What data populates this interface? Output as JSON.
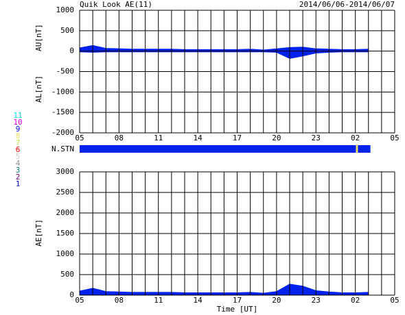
{
  "header": {
    "title": "Quik Look AE(11)",
    "date_range": "2014/06/06-2014/06/07"
  },
  "station_legend": [
    {
      "label": "11",
      "color": "#00e0e0"
    },
    {
      "label": "10",
      "color": "#e000e0"
    },
    {
      "label": "9",
      "color": "#0000ff"
    },
    {
      "label": "8",
      "color": "#f0e060"
    },
    {
      "label": "7",
      "color": "#c0e040"
    },
    {
      "label": "6",
      "color": "#ff0000"
    },
    {
      "label": "5",
      "color": "#c8c8c8"
    },
    {
      "label": "4",
      "color": "#909090"
    },
    {
      "label": "3",
      "color": "#008080"
    },
    {
      "label": "2",
      "color": "#800080"
    },
    {
      "label": "1",
      "color": "#0000a0"
    }
  ],
  "station_bar": {
    "label": "N.STN",
    "segments": [
      {
        "start": 5,
        "end": 26.05,
        "color": "#0022ee"
      },
      {
        "start": 26.05,
        "end": 26.2,
        "color": "#f0e060"
      },
      {
        "start": 26.2,
        "end": 27.15,
        "color": "#0022ee"
      }
    ]
  },
  "chart_data": [
    {
      "type": "area",
      "y_labels": [
        "AU[nT]",
        "AL[nT]"
      ],
      "x": [
        5,
        6,
        7,
        8,
        9,
        10,
        11,
        12,
        13,
        14,
        15,
        16,
        17,
        18,
        19,
        20,
        21,
        22,
        23,
        24,
        25,
        26,
        27
      ],
      "series": [
        {
          "name": "AU",
          "color": "#0022ee",
          "values": [
            80,
            140,
            70,
            60,
            50,
            50,
            50,
            50,
            40,
            40,
            40,
            40,
            40,
            50,
            30,
            60,
            90,
            100,
            60,
            50,
            40,
            40,
            50
          ]
        },
        {
          "name": "AL",
          "color": "#0022ee",
          "values": [
            -20,
            -30,
            -20,
            -20,
            -20,
            -20,
            -20,
            -20,
            -20,
            -20,
            -20,
            -20,
            -20,
            -20,
            -20,
            -30,
            -180,
            -120,
            -50,
            -30,
            -20,
            -20,
            -20
          ]
        }
      ],
      "xlim": [
        5,
        29
      ],
      "xticks": [
        {
          "value": 5,
          "label": "05"
        },
        {
          "value": 8,
          "label": "08"
        },
        11,
        14,
        17,
        20,
        23,
        {
          "value": 26,
          "label": "02"
        },
        {
          "value": 29,
          "label": "05"
        }
      ],
      "xgrid": [
        5,
        6,
        7,
        8,
        9,
        10,
        11,
        12,
        13,
        14,
        15,
        16,
        17,
        18,
        19,
        20,
        21,
        22,
        23,
        24,
        25,
        26,
        27,
        28,
        29
      ],
      "ylim": [
        -2000,
        1000
      ],
      "yticks": [
        -2000,
        -1500,
        -1000,
        -500,
        0,
        500,
        1000
      ],
      "grid": true
    },
    {
      "type": "area",
      "y_labels": [
        "AE[nT]"
      ],
      "xlabel": "Time [UT]",
      "x": [
        5,
        6,
        7,
        8,
        9,
        10,
        11,
        12,
        13,
        14,
        15,
        16,
        17,
        18,
        19,
        20,
        21,
        22,
        23,
        24,
        25,
        26,
        27
      ],
      "series": [
        {
          "name": "AE",
          "color": "#0022ee",
          "values": [
            100,
            170,
            90,
            80,
            70,
            70,
            70,
            70,
            60,
            60,
            60,
            60,
            60,
            70,
            50,
            90,
            270,
            220,
            110,
            80,
            60,
            60,
            70
          ]
        }
      ],
      "xlim": [
        5,
        29
      ],
      "xticks": [
        {
          "value": 5,
          "label": "05"
        },
        {
          "value": 8,
          "label": "08"
        },
        11,
        14,
        17,
        20,
        23,
        {
          "value": 26,
          "label": "02"
        },
        {
          "value": 29,
          "label": "05"
        }
      ],
      "xgrid": [
        5,
        6,
        7,
        8,
        9,
        10,
        11,
        12,
        13,
        14,
        15,
        16,
        17,
        18,
        19,
        20,
        21,
        22,
        23,
        24,
        25,
        26,
        27,
        28,
        29
      ],
      "ylim": [
        0,
        3000
      ],
      "yticks": [
        0,
        500,
        1000,
        1500,
        2000,
        2500,
        3000
      ],
      "grid": true
    }
  ]
}
